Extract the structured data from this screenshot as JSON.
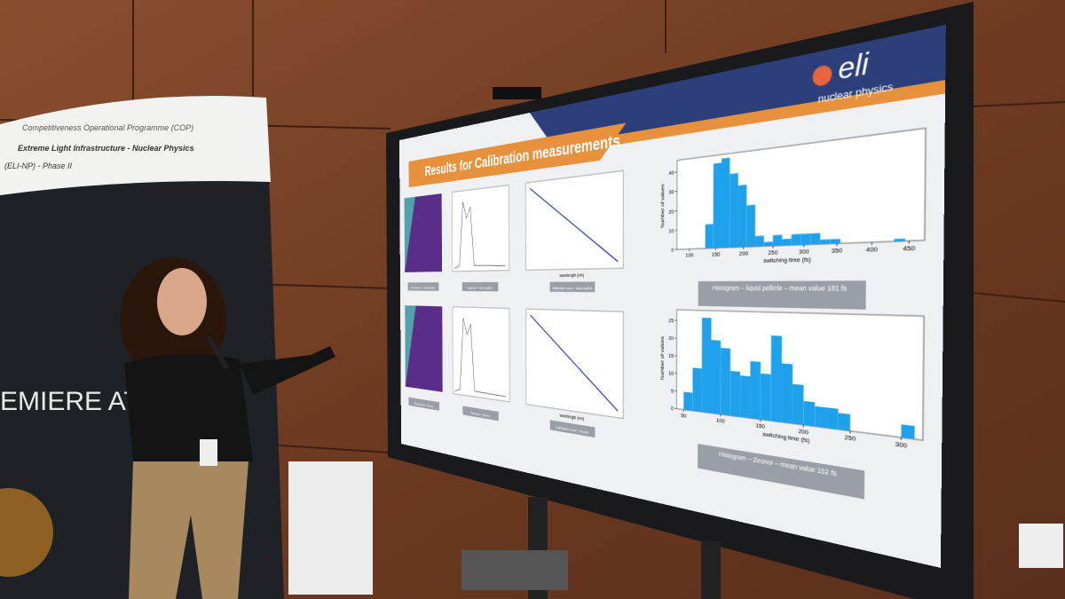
{
  "banner": {
    "programme": "Competitiveness Operational Programme (COP)",
    "project": "Extreme Light Infrastructure - Nuclear Physics",
    "phase": "(ELI-NP) - Phase II",
    "poster_text": "EMIERE AT"
  },
  "slide": {
    "title": "Results for Calibration measurements",
    "logo": "eli",
    "logo_subtitle": "nuclear physics",
    "captions": [
      [
        "Spectrogram – liquid pellicle",
        "Spectrum – liquid pellicle",
        "Calibration curve – liquid pellicle",
        "Histogram – liquid pellicle – mean value 181 fs"
      ],
      [
        "Spectrogram – Zeonor",
        "Spectrum – Zeonor",
        "Calibration curve – Zeonor",
        "Histogram – Zeonor – mean value 152 fs"
      ]
    ],
    "calibration_xlabel": "wavelength (nm)",
    "histograms": [
      {
        "xlabel": "switching time (fs)",
        "ylabel": "Number of values",
        "xlim": [
          75,
          470
        ],
        "ylim": [
          0,
          46
        ],
        "xticks": [
          100,
          150,
          200,
          250,
          300,
          350,
          400,
          450
        ],
        "yticks": [
          0,
          10,
          20,
          30,
          40
        ],
        "bins": [
          130,
          145,
          160,
          175,
          190,
          205,
          220,
          235,
          250,
          265,
          280,
          295,
          310,
          325,
          340,
          355,
          370,
          385,
          400,
          415,
          430,
          445,
          460
        ],
        "counts": [
          12,
          42,
          44,
          36,
          30,
          20,
          5,
          2,
          5,
          3,
          5,
          5,
          5,
          2,
          2,
          0,
          0,
          0,
          0,
          0,
          1,
          0
        ]
      },
      {
        "xlabel": "switching time (fs)",
        "ylabel": "Number of values",
        "xlim": [
          40,
          320
        ],
        "ylim": [
          0,
          28
        ],
        "xticks": [
          50,
          100,
          150,
          200,
          250,
          300
        ],
        "yticks": [
          0,
          5,
          10,
          15,
          20,
          25
        ],
        "bins": [
          50,
          62.5,
          75,
          87.5,
          100,
          112.5,
          125,
          137.5,
          150,
          162.5,
          175,
          187.5,
          200,
          212.5,
          225,
          237.5,
          250,
          262.5,
          275,
          287.5,
          300,
          312.5
        ],
        "counts": [
          5,
          12,
          26,
          20,
          18,
          12,
          11,
          15,
          12,
          22,
          15,
          10,
          6,
          5,
          5,
          4,
          0,
          0,
          0,
          0,
          3
        ]
      }
    ]
  }
}
